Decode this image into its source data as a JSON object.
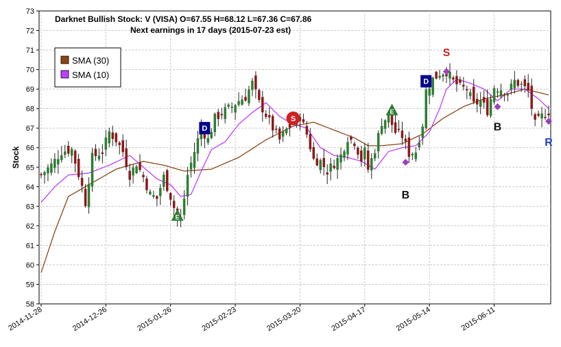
{
  "chart_data": {
    "type": "candlestick",
    "title_line1": "Darknet Bullish Stock: V (VISA) O=67.55  H=68.12  L=67.36  C=67.86",
    "title_line2": "Next earnings in 17 days  (2015-07-23 est)",
    "ylabel": "Stock",
    "ylim": [
      58,
      73
    ],
    "yticks": [
      58,
      59,
      60,
      61,
      62,
      63,
      64,
      65,
      66,
      67,
      68,
      69,
      70,
      71,
      72,
      73
    ],
    "num_bars": 150,
    "xticks": [
      {
        "index": 0,
        "label": "2014-11-28"
      },
      {
        "index": 19,
        "label": "2014-12-26"
      },
      {
        "index": 38,
        "label": "2015-01-26"
      },
      {
        "index": 57,
        "label": "2015-02-23"
      },
      {
        "index": 76,
        "label": "2015-03-20"
      },
      {
        "index": 95,
        "label": "2015-04-17"
      },
      {
        "index": 114,
        "label": "2015-05-14"
      },
      {
        "index": 133,
        "label": "2015-06-11"
      }
    ],
    "legend": {
      "position": "upper-left",
      "entries": [
        {
          "name": "SMA (30)",
          "color": "#8B4513"
        },
        {
          "name": "SMA (10)",
          "color": "#BF3FFF"
        }
      ]
    },
    "colors": {
      "up_candle": "#2e7d32",
      "down_candle": "#8b1a1a",
      "sma30": "#8B4513",
      "sma10": "#BF3FFF",
      "grid": "#c8c8c8"
    },
    "close_anchors": [
      [
        0,
        64.6
      ],
      [
        3,
        65.1
      ],
      [
        6,
        65.8
      ],
      [
        9,
        65.9
      ],
      [
        12,
        64.0
      ],
      [
        13,
        63.2
      ],
      [
        15,
        65.5
      ],
      [
        18,
        65.8
      ],
      [
        20,
        66.8
      ],
      [
        22,
        66.4
      ],
      [
        24,
        65.8
      ],
      [
        26,
        64.6
      ],
      [
        28,
        65.2
      ],
      [
        30,
        64.5
      ],
      [
        32,
        63.6
      ],
      [
        34,
        63.4
      ],
      [
        36,
        64.5
      ],
      [
        38,
        63.5
      ],
      [
        40,
        62.4
      ],
      [
        41,
        62.2
      ],
      [
        43,
        64.6
      ],
      [
        45,
        65.8
      ],
      [
        47,
        67.0
      ],
      [
        49,
        66.4
      ],
      [
        51,
        67.5
      ],
      [
        54,
        67.9
      ],
      [
        56,
        68.1
      ],
      [
        58,
        68.4
      ],
      [
        60,
        68.6
      ],
      [
        62,
        69.3
      ],
      [
        64,
        68.3
      ],
      [
        66,
        67.7
      ],
      [
        68,
        67.0
      ],
      [
        70,
        66.4
      ],
      [
        72,
        66.9
      ],
      [
        74,
        67.3
      ],
      [
        76,
        67.6
      ],
      [
        78,
        66.7
      ],
      [
        80,
        65.4
      ],
      [
        82,
        65.3
      ],
      [
        84,
        64.8
      ],
      [
        86,
        65.2
      ],
      [
        88,
        65.6
      ],
      [
        90,
        66.5
      ],
      [
        92,
        66.3
      ],
      [
        94,
        65.4
      ],
      [
        95,
        65.8
      ],
      [
        96,
        64.9
      ],
      [
        98,
        65.9
      ],
      [
        100,
        67.3
      ],
      [
        102,
        67.6
      ],
      [
        104,
        66.8
      ],
      [
        106,
        66.6
      ],
      [
        108,
        65.7
      ],
      [
        110,
        65.8
      ],
      [
        112,
        67.2
      ],
      [
        113,
        68.9
      ],
      [
        115,
        69.5
      ],
      [
        117,
        69.8
      ],
      [
        119,
        69.9
      ],
      [
        121,
        69.4
      ],
      [
        123,
        69.1
      ],
      [
        125,
        69.0
      ],
      [
        127,
        68.2
      ],
      [
        129,
        68.4
      ],
      [
        131,
        67.9
      ],
      [
        133,
        69.1
      ],
      [
        135,
        69.0
      ],
      [
        137,
        68.8
      ],
      [
        139,
        69.4
      ],
      [
        141,
        69.2
      ],
      [
        143,
        68.9
      ],
      [
        145,
        67.2
      ],
      [
        147,
        67.6
      ],
      [
        149,
        67.86
      ]
    ],
    "sma30_anchors": [
      [
        0,
        59.6
      ],
      [
        4,
        61.7
      ],
      [
        8,
        63.5
      ],
      [
        14,
        64.1
      ],
      [
        22,
        64.9
      ],
      [
        30,
        65.3
      ],
      [
        36,
        65.1
      ],
      [
        42,
        64.8
      ],
      [
        50,
        64.9
      ],
      [
        58,
        65.5
      ],
      [
        66,
        66.4
      ],
      [
        74,
        67.1
      ],
      [
        80,
        67.3
      ],
      [
        86,
        66.9
      ],
      [
        92,
        66.5
      ],
      [
        96,
        66.1
      ],
      [
        100,
        66.1
      ],
      [
        106,
        66.2
      ],
      [
        112,
        66.7
      ],
      [
        118,
        67.5
      ],
      [
        124,
        68.1
      ],
      [
        130,
        68.5
      ],
      [
        136,
        68.7
      ],
      [
        142,
        69.0
      ],
      [
        149,
        68.7
      ]
    ],
    "sma10_anchors": [
      [
        0,
        63.2
      ],
      [
        4,
        64.0
      ],
      [
        8,
        64.6
      ],
      [
        14,
        64.7
      ],
      [
        20,
        65.1
      ],
      [
        26,
        65.6
      ],
      [
        30,
        65.0
      ],
      [
        34,
        64.4
      ],
      [
        38,
        64.1
      ],
      [
        41,
        63.5
      ],
      [
        44,
        63.6
      ],
      [
        47,
        64.8
      ],
      [
        50,
        65.9
      ],
      [
        54,
        66.3
      ],
      [
        58,
        67.2
      ],
      [
        62,
        67.8
      ],
      [
        66,
        68.3
      ],
      [
        70,
        67.6
      ],
      [
        74,
        67.2
      ],
      [
        78,
        67.0
      ],
      [
        82,
        66.0
      ],
      [
        86,
        65.6
      ],
      [
        90,
        65.5
      ],
      [
        94,
        65.3
      ],
      [
        98,
        64.9
      ],
      [
        102,
        65.8
      ],
      [
        106,
        66.0
      ],
      [
        110,
        66.1
      ],
      [
        114,
        66.8
      ],
      [
        117,
        68.0
      ],
      [
        119,
        69.0
      ],
      [
        122,
        69.5
      ],
      [
        126,
        69.3
      ],
      [
        130,
        69.0
      ],
      [
        134,
        68.4
      ],
      [
        138,
        69.0
      ],
      [
        142,
        69.0
      ],
      [
        146,
        68.5
      ],
      [
        149,
        68.0
      ]
    ],
    "annotations": [
      {
        "text": "D",
        "style": "box",
        "color": "#00008B",
        "x_index": 48,
        "y": 67.0
      },
      {
        "text": "E",
        "style": "triangle",
        "color": "#2e7d32",
        "x_index": 40,
        "y": 62.5
      },
      {
        "text": "S",
        "style": "circle",
        "color": "#cc2222",
        "x_index": 74,
        "y": 67.5
      },
      {
        "text": "E",
        "style": "triangle",
        "color": "#2e7d32",
        "x_index": 103,
        "y": 67.9
      },
      {
        "text": "D",
        "style": "box",
        "color": "#00008B",
        "x_index": 113,
        "y": 69.4
      },
      {
        "text": "S",
        "style": "plain",
        "color": "#cc2222",
        "x_index": 119,
        "y": 70.9
      },
      {
        "text": "B",
        "style": "plain",
        "color": "#111111",
        "x_index": 107,
        "y": 63.6
      },
      {
        "text": "B",
        "style": "plain",
        "color": "#111111",
        "x_index": 134,
        "y": 67.1
      },
      {
        "text": "R",
        "style": "plain",
        "color": "#1f3fbf",
        "x_index": 149,
        "y": 66.3
      }
    ],
    "diamonds": [
      {
        "x_index": 107,
        "y": 65.25,
        "color": "#9b3fbf"
      },
      {
        "x_index": 119,
        "y": 69.9,
        "color": "#9b3fbf"
      },
      {
        "x_index": 134,
        "y": 68.1,
        "color": "#9b3fbf"
      },
      {
        "x_index": 149,
        "y": 67.35,
        "color": "#9b3fbf"
      }
    ]
  }
}
